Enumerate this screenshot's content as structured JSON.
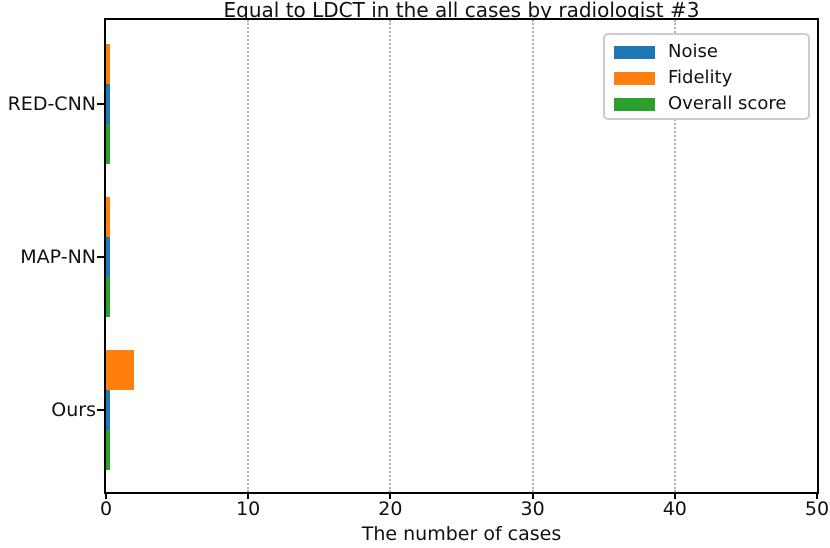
{
  "chart_data": {
    "type": "bar",
    "orientation": "horizontal",
    "title": "Equal to LDCT in the all cases by radiologist #3",
    "xlabel": "The number of cases",
    "ylabel": "",
    "categories": [
      "RED-CNN",
      "MAP-NN",
      "Ours"
    ],
    "series": [
      {
        "name": "Noise",
        "color": "#1f77b4",
        "values": [
          0,
          0,
          0
        ]
      },
      {
        "name": "Fidelity",
        "color": "#ff7f0e",
        "values": [
          0,
          0,
          2
        ]
      },
      {
        "name": "Overall score",
        "color": "#2ca02c",
        "values": [
          0,
          0,
          0
        ]
      }
    ],
    "xlim": [
      0,
      50
    ],
    "xticks": [
      0,
      10,
      20,
      30,
      40,
      50
    ],
    "grid": {
      "axis": "x",
      "style": "dotted"
    },
    "legend_position": "upper right",
    "bar_group_order_top_to_bottom": [
      "Fidelity",
      "Noise",
      "Overall score"
    ],
    "zero_value_rendering": "zero-count bars drawn as thin ~4px slivers at the axis"
  }
}
